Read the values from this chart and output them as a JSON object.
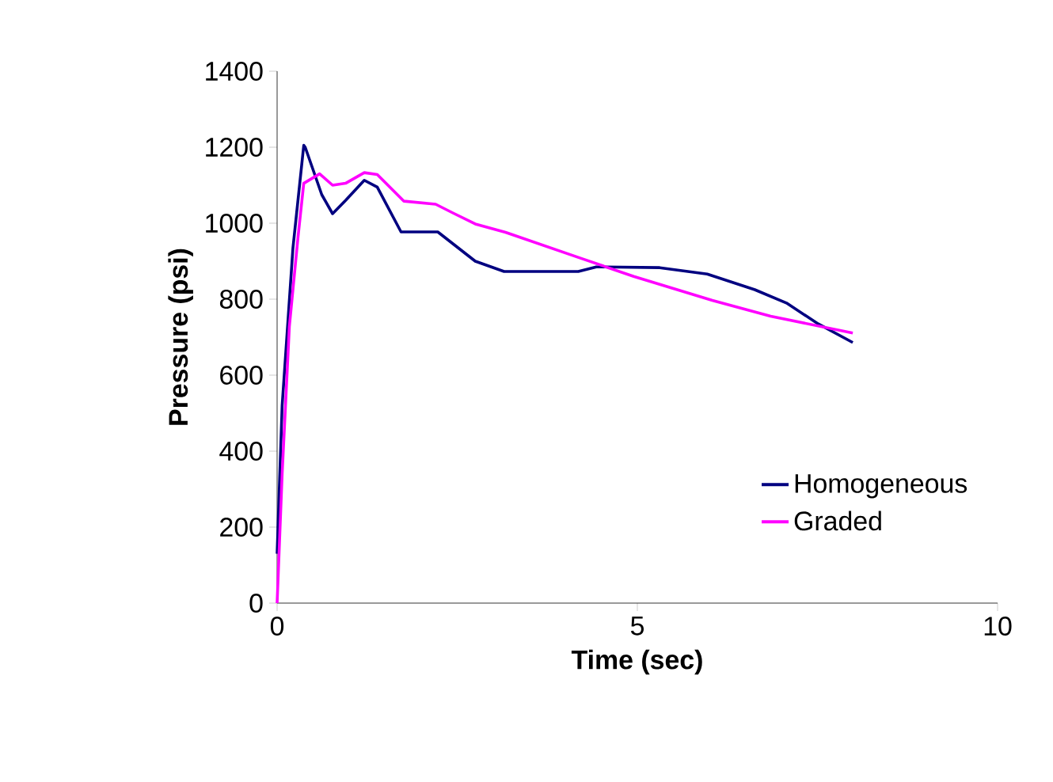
{
  "chart_data": {
    "type": "line",
    "xlabel": "Time (sec)",
    "ylabel": "Pressure (psi)",
    "xlim": [
      0,
      10
    ],
    "ylim": [
      0,
      1400
    ],
    "xticks": [
      0,
      5,
      10
    ],
    "yticks": [
      0,
      200,
      400,
      600,
      800,
      1000,
      1200,
      1400
    ],
    "grid": false,
    "legend": "bottom right",
    "marker": "none",
    "line_style": "solid",
    "series": [
      {
        "name": "Homogeneous",
        "color": "#000080",
        "x": [
          0,
          0.07,
          0.22,
          0.37,
          0.39,
          0.62,
          0.77,
          0.95,
          1.21,
          1.39,
          1.72,
          2.23,
          2.75,
          3.15,
          4.18,
          4.43,
          5.31,
          5.97,
          6.63,
          7.07,
          7.51,
          7.99
        ],
        "values": [
          130,
          520,
          935,
          1205,
          1200,
          1075,
          1025,
          1060,
          1113,
          1095,
          977,
          977,
          900,
          873,
          873,
          885,
          883,
          866,
          825,
          790,
          735,
          686
        ]
      },
      {
        "name": "Graded",
        "color": "#ff00ff",
        "x": [
          0,
          0.07,
          0.17,
          0.29,
          0.37,
          0.59,
          0.77,
          0.95,
          1.21,
          1.39,
          1.76,
          2.2,
          2.45,
          2.75,
          3.17,
          4.21,
          4.95,
          6.04,
          6.85,
          7.99
        ],
        "values": [
          0,
          340,
          728,
          963,
          1105,
          1130,
          1100,
          1105,
          1133,
          1128,
          1058,
          1050,
          1026,
          998,
          976,
          908,
          860,
          797,
          755,
          711
        ]
      }
    ]
  }
}
